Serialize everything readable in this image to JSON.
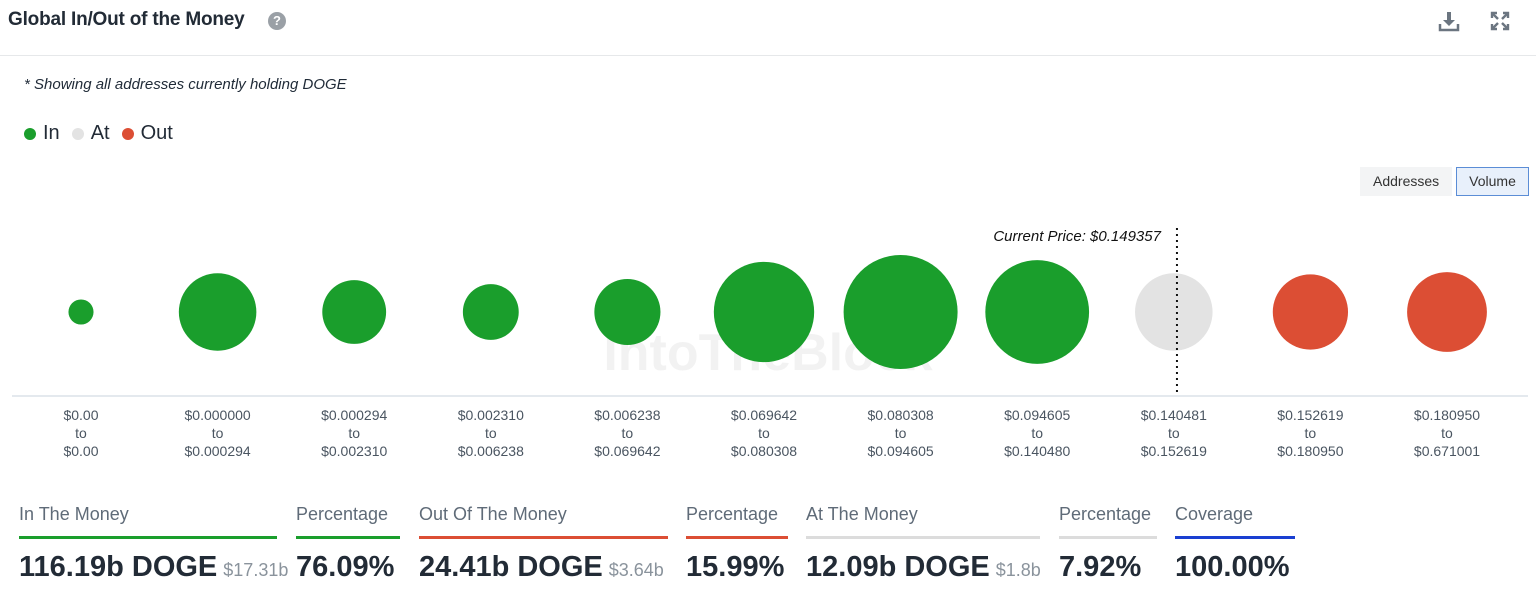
{
  "header": {
    "title": "Global In/Out of the Money",
    "help_glyph": "?"
  },
  "note": "* Showing all addresses currently holding DOGE",
  "legend": [
    {
      "label": "In",
      "color": "#1a9e2c"
    },
    {
      "label": "At",
      "color": "#e3e3e3"
    },
    {
      "label": "Out",
      "color": "#dc4e34"
    }
  ],
  "toggle": {
    "addresses_label": "Addresses",
    "volume_label": "Volume",
    "selected": "Volume"
  },
  "chart_data": {
    "type": "bubble",
    "measure": "Volume",
    "current_price_label": "Current Price: $0.149357",
    "current_price": 0.149357,
    "watermark": "IntoTheBlock",
    "categories": [
      {
        "from": "$0.00",
        "to": "$0.00",
        "status": "In",
        "relative_size": 0.22
      },
      {
        "from": "$0.000000",
        "to": "$0.000294",
        "status": "In",
        "relative_size": 0.68
      },
      {
        "from": "$0.000294",
        "to": "$0.002310",
        "status": "In",
        "relative_size": 0.56
      },
      {
        "from": "$0.002310",
        "to": "$0.006238",
        "status": "In",
        "relative_size": 0.49
      },
      {
        "from": "$0.006238",
        "to": "$0.069642",
        "status": "In",
        "relative_size": 0.58
      },
      {
        "from": "$0.069642",
        "to": "$0.080308",
        "status": "In",
        "relative_size": 0.88
      },
      {
        "from": "$0.080308",
        "to": "$0.094605",
        "status": "In",
        "relative_size": 1.0
      },
      {
        "from": "$0.094605",
        "to": "$0.140480",
        "status": "In",
        "relative_size": 0.91
      },
      {
        "from": "$0.140481",
        "to": "$0.152619",
        "status": "At",
        "relative_size": 0.68
      },
      {
        "from": "$0.152619",
        "to": "$0.180950",
        "status": "Out",
        "relative_size": 0.66
      },
      {
        "from": "$0.180950",
        "to": "$0.671001",
        "status": "Out",
        "relative_size": 0.7
      }
    ],
    "to_word": "to",
    "colors": {
      "In": "#1a9e2c",
      "At": "#e3e3e3",
      "Out": "#dc4e34"
    }
  },
  "stats": [
    {
      "label": "In The Money",
      "value": "116.19b DOGE",
      "sub": "$17.31b",
      "color": "#1a9e2c"
    },
    {
      "label": "Percentage",
      "value": "76.09%",
      "sub": "",
      "color": "#1a9e2c"
    },
    {
      "label": "Out Of The Money",
      "value": "24.41b DOGE",
      "sub": "$3.64b",
      "color": "#dc4e34"
    },
    {
      "label": "Percentage",
      "value": "15.99%",
      "sub": "",
      "color": "#dc4e34"
    },
    {
      "label": "At The Money",
      "value": "12.09b DOGE",
      "sub": "$1.8b",
      "color": "#dcdcdc"
    },
    {
      "label": "Percentage",
      "value": "7.92%",
      "sub": "",
      "color": "#dcdcdc"
    },
    {
      "label": "Coverage",
      "value": "100.00%",
      "sub": "",
      "color": "#1a3fd1"
    }
  ]
}
